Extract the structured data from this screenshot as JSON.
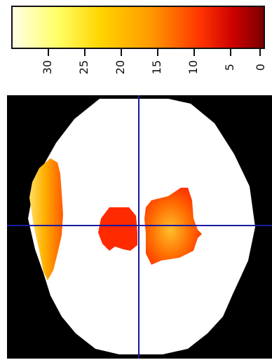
{
  "colorbar": {
    "tick_labels": [
      "30",
      "25",
      "20",
      "15",
      "10",
      "5",
      "0"
    ],
    "values": [
      30,
      25,
      20,
      15,
      10,
      5,
      0
    ],
    "range": [
      0,
      33
    ],
    "gradient_colors": [
      "#fffde6",
      "#ffff66",
      "#ffd400",
      "#ff9a00",
      "#ff3300",
      "#cc0000",
      "#7a0000"
    ],
    "orientation": "rotated"
  },
  "brain_slice": {
    "background_color": "#000000",
    "tissue_color": "#ffffff",
    "crosshair_color": "#1a1aa0",
    "activation_colors": {
      "low": "#ff2a00",
      "mid": "#ff6a00",
      "high": "#ffe066"
    }
  }
}
